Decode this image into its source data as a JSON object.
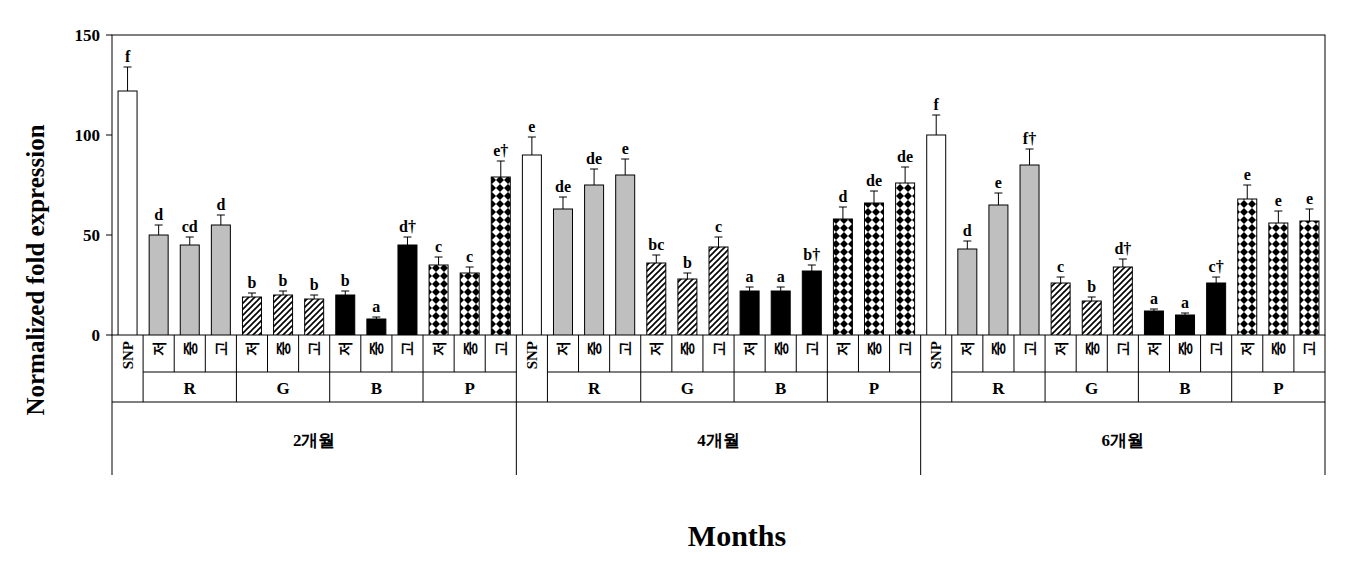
{
  "chart_data": {
    "type": "bar",
    "y_label": "Normalized fold expression",
    "x_label": "Months",
    "ylim": [
      0,
      150
    ],
    "yticks": [
      0,
      50,
      100,
      150
    ],
    "categories": [
      "SNP",
      "저",
      "중",
      "고",
      "저",
      "중",
      "고",
      "저",
      "중",
      "고",
      "저",
      "중",
      "고",
      "SNP",
      "저",
      "중",
      "고",
      "저",
      "중",
      "고",
      "저",
      "중",
      "고",
      "저",
      "중",
      "고",
      "SNP",
      "저",
      "중",
      "고",
      "저",
      "중",
      "고",
      "저",
      "중",
      "고",
      "저",
      "중",
      "고"
    ],
    "group_labels": [
      null,
      "R",
      "R",
      "R",
      "G",
      "G",
      "G",
      "B",
      "B",
      "B",
      "P",
      "P",
      "P",
      null,
      "R",
      "R",
      "R",
      "G",
      "G",
      "G",
      "B",
      "B",
      "B",
      "P",
      "P",
      "P",
      null,
      "R",
      "R",
      "R",
      "G",
      "G",
      "G",
      "B",
      "B",
      "B",
      "P",
      "P",
      "P"
    ],
    "month_labels": [
      "2개월",
      "2개월",
      "2개월",
      "2개월",
      "2개월",
      "2개월",
      "2개월",
      "2개월",
      "2개월",
      "2개월",
      "2개월",
      "2개월",
      "2개월",
      "4개월",
      "4개월",
      "4개월",
      "4개월",
      "4개월",
      "4개월",
      "4개월",
      "4개월",
      "4개월",
      "4개월",
      "4개월",
      "4개월",
      "4개월",
      "6개월",
      "6개월",
      "6개월",
      "6개월",
      "6개월",
      "6개월",
      "6개월",
      "6개월",
      "6개월",
      "6개월",
      "6개월",
      "6개월",
      "6개월"
    ],
    "values": [
      122,
      50,
      45,
      55,
      19,
      20,
      18,
      20,
      8,
      45,
      35,
      31,
      79,
      90,
      63,
      75,
      80,
      36,
      28,
      44,
      22,
      22,
      32,
      58,
      66,
      76,
      100,
      43,
      65,
      85,
      26,
      17,
      34,
      12,
      10,
      26,
      68,
      56,
      57
    ],
    "errors": [
      12,
      5,
      4,
      5,
      2,
      2,
      2,
      2,
      1,
      4,
      4,
      3,
      8,
      9,
      6,
      8,
      8,
      4,
      3,
      5,
      2,
      2,
      3,
      6,
      6,
      8,
      10,
      4,
      6,
      8,
      3,
      2,
      4,
      1,
      1,
      3,
      7,
      6,
      6
    ],
    "letters": [
      "f",
      "d",
      "cd",
      "d",
      "b",
      "b",
      "b",
      "b",
      "a",
      "d†",
      "c",
      "c",
      "e†",
      "e",
      "de",
      "de",
      "e",
      "bc",
      "b",
      "c",
      "a",
      "a",
      "b†",
      "d",
      "de",
      "de",
      "f",
      "d",
      "e",
      "f†",
      "c",
      "b",
      "d†",
      "a",
      "a",
      "c†",
      "e",
      "e",
      "e"
    ],
    "colors": [
      "#ffffff",
      "#bfbfbf",
      "#bfbfbf",
      "#bfbfbf",
      "#ffffff",
      "#ffffff",
      "#ffffff",
      "#000000",
      "#000000",
      "#000000",
      "#ffffff",
      "#ffffff",
      "#ffffff",
      "#ffffff",
      "#bfbfbf",
      "#bfbfbf",
      "#bfbfbf",
      "#ffffff",
      "#ffffff",
      "#ffffff",
      "#000000",
      "#000000",
      "#000000",
      "#ffffff",
      "#ffffff",
      "#ffffff",
      "#ffffff",
      "#bfbfbf",
      "#bfbfbf",
      "#bfbfbf",
      "#ffffff",
      "#ffffff",
      "#ffffff",
      "#000000",
      "#000000",
      "#000000",
      "#ffffff",
      "#ffffff",
      "#ffffff"
    ]
  }
}
